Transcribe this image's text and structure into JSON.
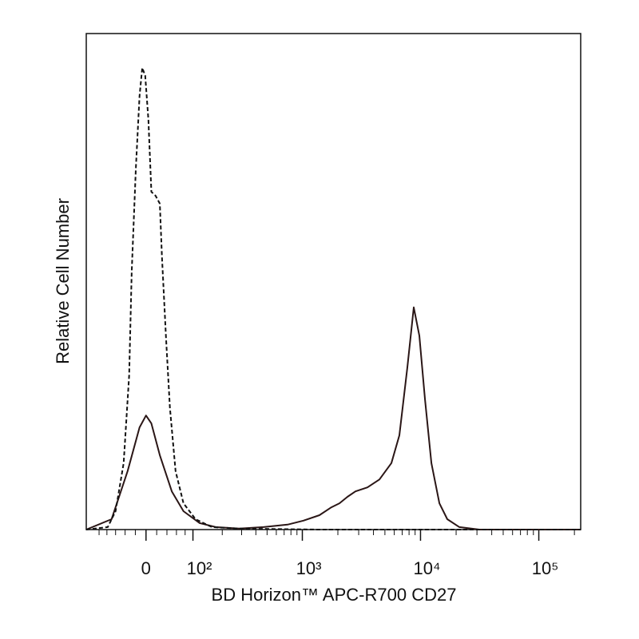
{
  "chart_data": {
    "type": "histogram-overlay",
    "xlabel": "BD Horizon™ APC-R700 CD27",
    "ylabel": "Relative Cell Number",
    "xscale": "biexponential",
    "xlim": [
      -138,
      226000
    ],
    "ylim": [
      0,
      100
    ],
    "xticks": [
      0,
      {
        "value": 100,
        "label": "10²"
      },
      {
        "value": 1000,
        "label": "10³"
      },
      {
        "value": 10000,
        "label": "10⁴"
      },
      {
        "value": 100000,
        "label": "10⁵"
      }
    ],
    "xminorticks": [
      -100,
      -80,
      -60,
      -40,
      -20,
      20,
      40,
      60,
      80,
      200,
      300,
      400,
      500,
      600,
      700,
      800,
      900,
      2000,
      3000,
      4000,
      5000,
      6000,
      7000,
      8000,
      9000,
      20000,
      30000,
      40000,
      50000,
      60000,
      70000,
      80000,
      90000,
      200000
    ],
    "series": [
      {
        "color": "#2a1616",
        "dashed": false,
        "x": [
          -138,
          -69,
          -35,
          -12,
          0,
          10,
          26,
          50,
          76,
          119,
          173,
          287,
          466,
          748,
          1022,
          1396,
          1764,
          2063,
          2410,
          2817,
          3556,
          4493,
          5669,
          6625,
          7744,
          8767,
          9780,
          10908,
          12352,
          14436,
          16854,
          21290,
          31414,
          226000
        ],
        "values": [
          0,
          2.1,
          11.8,
          20.6,
          23.0,
          21.4,
          15.0,
          7.7,
          3.7,
          1.3,
          0.5,
          0.2,
          0.5,
          1.0,
          1.8,
          2.9,
          4.5,
          5.3,
          6.6,
          7.7,
          8.5,
          10.1,
          13.4,
          19.0,
          32.7,
          44.8,
          39.1,
          26.2,
          13.4,
          5.3,
          2.1,
          0.5,
          0,
          0
        ]
      },
      {
        "color": "#111111",
        "dashed": true,
        "x": [
          -138,
          -78,
          -60,
          -43,
          -32,
          -27,
          -19,
          -12,
          -7,
          -1.5,
          4.5,
          10,
          18,
          26,
          30,
          38,
          46,
          58,
          76,
          107,
          159,
          287,
          1396,
          226000
        ],
        "values": [
          0,
          0.5,
          3.7,
          13.4,
          31.1,
          52.0,
          72.9,
          87.4,
          93.1,
          91.5,
          82.6,
          68.1,
          67.3,
          65.7,
          55.2,
          39.1,
          24.6,
          11.8,
          5.3,
          2.1,
          0.5,
          0.2,
          0,
          0
        ]
      }
    ]
  }
}
